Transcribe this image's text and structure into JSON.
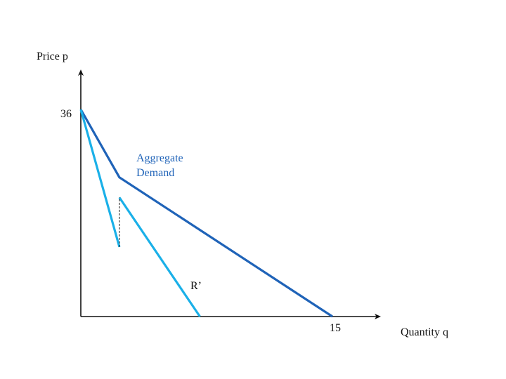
{
  "chart_data": {
    "type": "line",
    "xlabel": "Quantity q",
    "ylabel": "Price p",
    "xlim": [
      0,
      15
    ],
    "ylim": [
      0,
      36
    ],
    "x_ticks": [
      {
        "value": 15,
        "label": "15"
      }
    ],
    "y_ticks": [
      {
        "value": 36,
        "label": "36"
      }
    ],
    "series": [
      {
        "name": "Aggregate Demand",
        "color": "#1f63b8",
        "points": [
          [
            0,
            36
          ],
          [
            2.3,
            24.2
          ],
          [
            15,
            0
          ]
        ]
      },
      {
        "name": "R’",
        "color": "#1ab0e8",
        "segments": [
          [
            [
              0,
              36
            ],
            [
              2.3,
              12.1
            ]
          ],
          [
            [
              2.3,
              20.7
            ],
            [
              7.1,
              0
            ]
          ]
        ]
      }
    ],
    "annotations": [
      {
        "type": "dashed-vertical",
        "x": 2.3,
        "y_from": 12.1,
        "y_to": 20.7
      }
    ],
    "grid": false
  }
}
